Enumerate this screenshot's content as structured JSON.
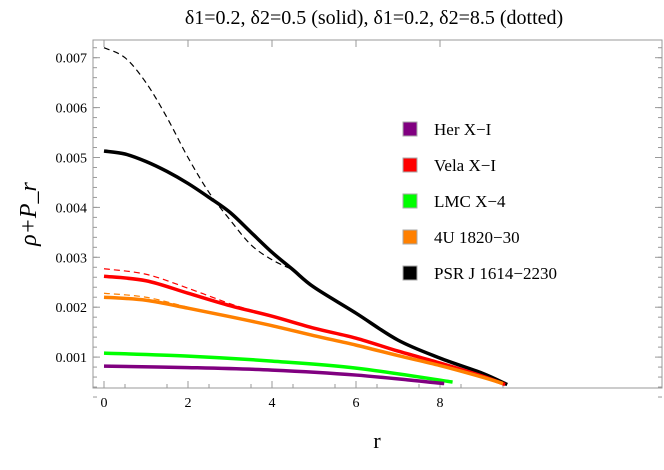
{
  "chart_data": {
    "type": "line",
    "title": "δ1=0.2, δ2=0.5 (solid), δ1=0.2, δ2=8.5 (dotted)",
    "xlabel": "r",
    "ylabel": "ρ+P_r",
    "xlim": [
      -0.3,
      9.8
    ],
    "ylim": [
      0.0,
      0.0074
    ],
    "xticks": [
      "0",
      "2",
      "4",
      "6",
      "8"
    ],
    "yticks": [
      "0.001",
      "0.002",
      "0.003",
      "0.004",
      "0.005",
      "0.006",
      "0.007"
    ],
    "legend_position": "right",
    "series": [
      {
        "name": "Her X-I",
        "color": "#800080",
        "style": "solid",
        "x": [
          0,
          2,
          4,
          6,
          8.1
        ],
        "y": [
          0.00082,
          0.00079,
          0.00074,
          0.00064,
          0.00047
        ]
      },
      {
        "name": "Vela X-I",
        "color": "#ff0000",
        "style": "solid",
        "x": [
          0,
          1,
          2,
          3,
          4,
          5,
          6,
          7,
          8,
          9,
          9.55
        ],
        "y": [
          0.00262,
          0.00253,
          0.00228,
          0.00203,
          0.00182,
          0.00158,
          0.00138,
          0.00112,
          0.00088,
          0.00062,
          0.00045
        ]
      },
      {
        "name": "LMC X-4",
        "color": "#00ff00",
        "style": "solid",
        "x": [
          0,
          2,
          4,
          6,
          8.3
        ],
        "y": [
          0.00108,
          0.00102,
          0.00092,
          0.00078,
          0.0005
        ]
      },
      {
        "name": "4U 1820-30",
        "color": "#ff8000",
        "style": "solid",
        "x": [
          0,
          1,
          2,
          3,
          4,
          5,
          6,
          7,
          8,
          9,
          9.5
        ],
        "y": [
          0.0022,
          0.00214,
          0.00198,
          0.00181,
          0.00163,
          0.00143,
          0.00124,
          0.00103,
          0.00083,
          0.0006,
          0.00047
        ]
      },
      {
        "name": "PSR J 1614-2230",
        "color": "#000000",
        "style": "solid",
        "x": [
          0,
          0.5,
          1,
          1.5,
          2,
          2.5,
          3,
          3.5,
          4,
          4.5,
          5,
          6,
          7,
          8,
          9,
          9.6
        ],
        "y": [
          0.00513,
          0.00507,
          0.00492,
          0.00472,
          0.00448,
          0.0042,
          0.0039,
          0.0035,
          0.0031,
          0.00275,
          0.0024,
          0.00188,
          0.00134,
          0.00098,
          0.00068,
          0.00045
        ]
      },
      {
        "color": "#000000",
        "style": "dashed",
        "x": [
          0,
          0.5,
          1,
          1.5,
          2,
          2.5,
          3,
          3.5,
          4,
          4.5
        ],
        "y": [
          0.0072,
          0.007,
          0.0065,
          0.0058,
          0.005,
          0.0043,
          0.00375,
          0.00325,
          0.00295,
          0.00275
        ]
      },
      {
        "color": "#ff0000",
        "style": "dashed",
        "x": [
          0,
          1,
          2,
          3,
          3.6
        ],
        "y": [
          0.00277,
          0.00266,
          0.00238,
          0.00207,
          0.00192
        ]
      },
      {
        "color": "#ff8000",
        "style": "dashed",
        "x": [
          0,
          1,
          2,
          2.6
        ],
        "y": [
          0.00228,
          0.0022,
          0.002,
          0.00188
        ]
      }
    ]
  }
}
